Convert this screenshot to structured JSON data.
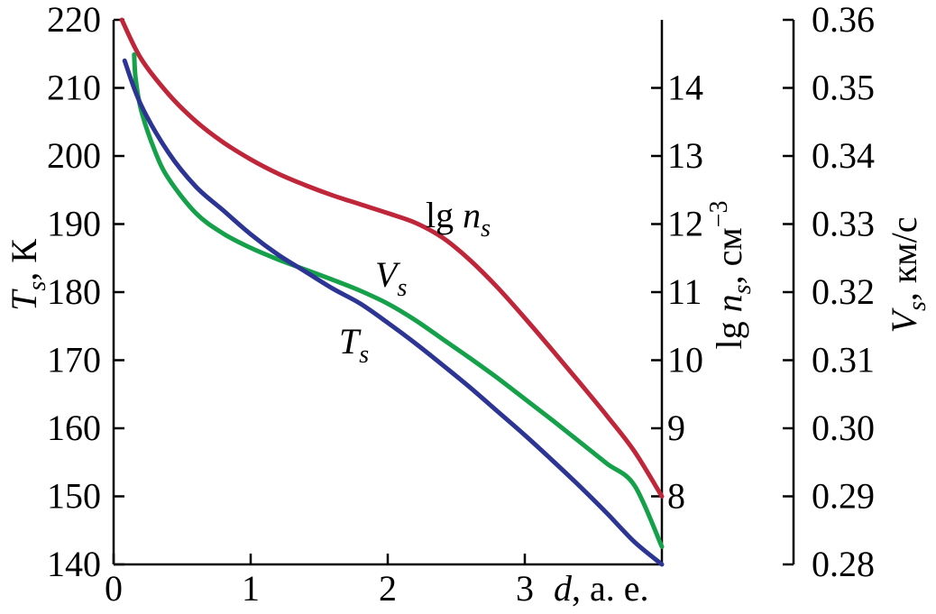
{
  "chart_data": {
    "type": "line",
    "xlabel": {
      "var": "d",
      "rest": ", а. е."
    },
    "x_ticks": [
      0,
      1,
      2,
      3
    ],
    "xlim": [
      0,
      4
    ],
    "axes": {
      "left": {
        "label_var": "T",
        "label_sub": "s",
        "label_rest": ", К",
        "ticks": [
          "140",
          "150",
          "160",
          "170",
          "180",
          "190",
          "200",
          "210",
          "220"
        ],
        "ylim": [
          140,
          220
        ]
      },
      "middle": {
        "label_pre": "lg ",
        "label_var": "n",
        "label_sub": "s",
        "label_rest": ", см",
        "label_sup": "−3",
        "ticks": [
          "8",
          "9",
          "10",
          "11",
          "12",
          "13",
          "14"
        ],
        "ylim": [
          7.0,
          15.0
        ]
      },
      "right": {
        "label_var": "V",
        "label_sub": "s",
        "label_rest": ", км/с",
        "ticks": [
          "0.28",
          "0.29",
          "0.30",
          "0.31",
          "0.32",
          "0.33",
          "0.34",
          "0.35",
          "0.36"
        ],
        "ylim": [
          0.28,
          0.36
        ]
      }
    },
    "series": [
      {
        "name": "lg n_s",
        "label_pre": "lg ",
        "label_var": "n",
        "label_sub": "s",
        "axis": "middle",
        "color": "#c0263a",
        "x": [
          0.06,
          0.2,
          0.4,
          0.6,
          0.8,
          1.0,
          1.2,
          1.4,
          1.6,
          1.8,
          2.0,
          2.2,
          2.4,
          2.6,
          2.8,
          3.0,
          3.2,
          3.4,
          3.6,
          3.8,
          4.0
        ],
        "y": [
          15.0,
          14.43,
          13.91,
          13.51,
          13.2,
          12.95,
          12.74,
          12.57,
          12.42,
          12.29,
          12.16,
          12.02,
          11.8,
          11.47,
          11.07,
          10.62,
          10.15,
          9.67,
          9.18,
          8.66,
          8.0
        ]
      },
      {
        "name": "V_s",
        "label_var": "V",
        "label_sub": "s",
        "axis": "right",
        "color": "#15a04a",
        "x": [
          0.15,
          0.16,
          0.2,
          0.3,
          0.4,
          0.6,
          0.8,
          1.0,
          1.2,
          1.4,
          1.6,
          1.8,
          2.0,
          2.2,
          2.4,
          2.6,
          2.8,
          3.0,
          3.2,
          3.4,
          3.6,
          3.8,
          4.0
        ],
        "y": [
          0.3549,
          0.3515,
          0.3468,
          0.3408,
          0.3367,
          0.3316,
          0.3286,
          0.3265,
          0.3248,
          0.3233,
          0.3218,
          0.3202,
          0.3183,
          0.3159,
          0.3131,
          0.3103,
          0.3074,
          0.3043,
          0.3012,
          0.298,
          0.2948,
          0.2916,
          0.2826
        ]
      },
      {
        "name": "T_s",
        "label_var": "T",
        "label_sub": "s",
        "axis": "left",
        "color": "#2c3594",
        "x": [
          0.08,
          0.2,
          0.4,
          0.6,
          0.8,
          1.0,
          1.2,
          1.4,
          1.6,
          1.8,
          2.0,
          2.2,
          2.4,
          2.6,
          2.8,
          3.0,
          3.2,
          3.4,
          3.6,
          3.8,
          4.0
        ],
        "y": [
          214.0,
          207.5,
          200.5,
          195.5,
          192.0,
          188.5,
          185.5,
          183.0,
          180.5,
          178.3,
          175.5,
          172.5,
          169.3,
          166.0,
          162.5,
          159.0,
          155.3,
          151.5,
          147.5,
          143.3,
          140.0
        ]
      }
    ],
    "annotations": [
      {
        "series": "lg n_s",
        "x": 2.4,
        "y": 12.75,
        "axis": "middle"
      },
      {
        "series": "V_s",
        "x": 1.95,
        "y": 0.3245,
        "axis": "right"
      },
      {
        "series": "T_s",
        "x": 1.6,
        "y": 0.0,
        "axis": "left",
        "y_left": 176.0
      }
    ]
  }
}
